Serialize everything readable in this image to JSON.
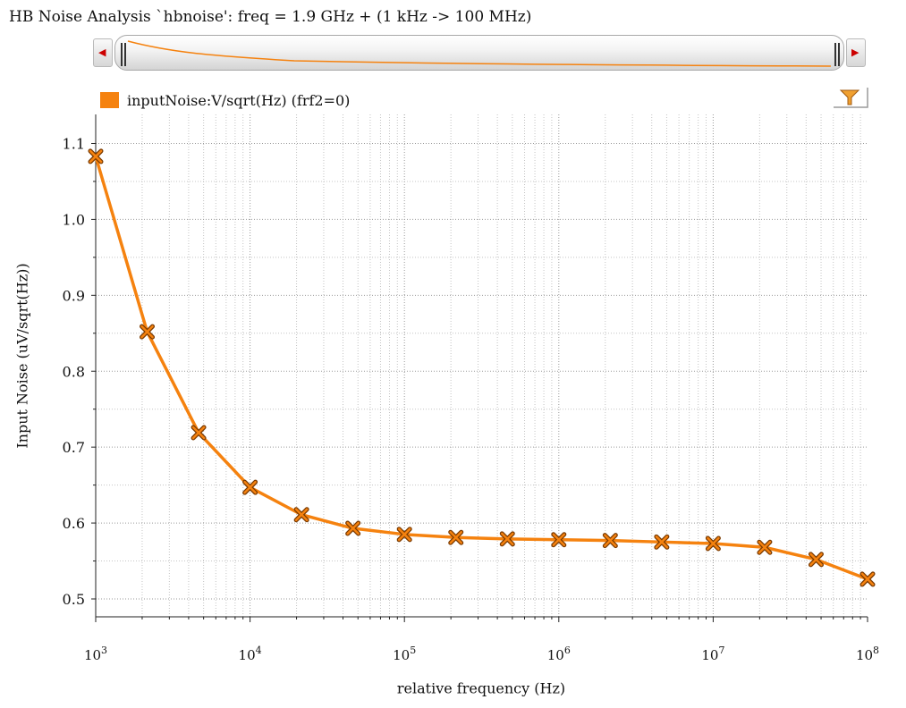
{
  "window": {
    "title": "HB Noise Analysis `hbnoise': freq = 1.9 GHz + (1 kHz -> 100 MHz)"
  },
  "overview_strip": {
    "left_arrow_icon": "arrow-left-icon",
    "right_arrow_icon": "arrow-right-icon"
  },
  "legend": {
    "label": "inputNoise:V/sqrt(Hz) (frf2=0)",
    "color": "#f5820f"
  },
  "toolbar": {
    "filter_icon": "filter-funnel-icon"
  },
  "chart_data": {
    "type": "line",
    "xscale": "log",
    "xlabel": "relative frequency (Hz)",
    "ylabel": "Input Noise (uV/sqrt(Hz))",
    "xlim": [
      1000,
      100000000
    ],
    "ylim": [
      0.5,
      1.1
    ],
    "grid": true,
    "legend_position": "top-left",
    "x_ticks": [
      {
        "value": 1000,
        "base": "10",
        "exp": "3"
      },
      {
        "value": 10000,
        "base": "10",
        "exp": "4"
      },
      {
        "value": 100000,
        "base": "10",
        "exp": "5"
      },
      {
        "value": 1000000,
        "base": "10",
        "exp": "6"
      },
      {
        "value": 10000000,
        "base": "10",
        "exp": "7"
      },
      {
        "value": 100000000,
        "base": "10",
        "exp": "8"
      }
    ],
    "y_ticks": [
      "0.5",
      "0.6",
      "0.7",
      "0.8",
      "0.9",
      "1.0",
      "1.1"
    ],
    "series": [
      {
        "name": "inputNoise:V/sqrt(Hz) (frf2=0)",
        "color": "#f5820f",
        "marker": "x",
        "x": [
          1000,
          2154,
          4642,
          10000,
          21544,
          46416,
          100000,
          215443,
          464159,
          1000000,
          2154435,
          4641589,
          10000000,
          21544347,
          46415888,
          100000000
        ],
        "y": [
          1.083,
          0.852,
          0.719,
          0.647,
          0.611,
          0.593,
          0.585,
          0.581,
          0.579,
          0.578,
          0.577,
          0.575,
          0.573,
          0.568,
          0.552,
          0.526
        ]
      }
    ]
  }
}
